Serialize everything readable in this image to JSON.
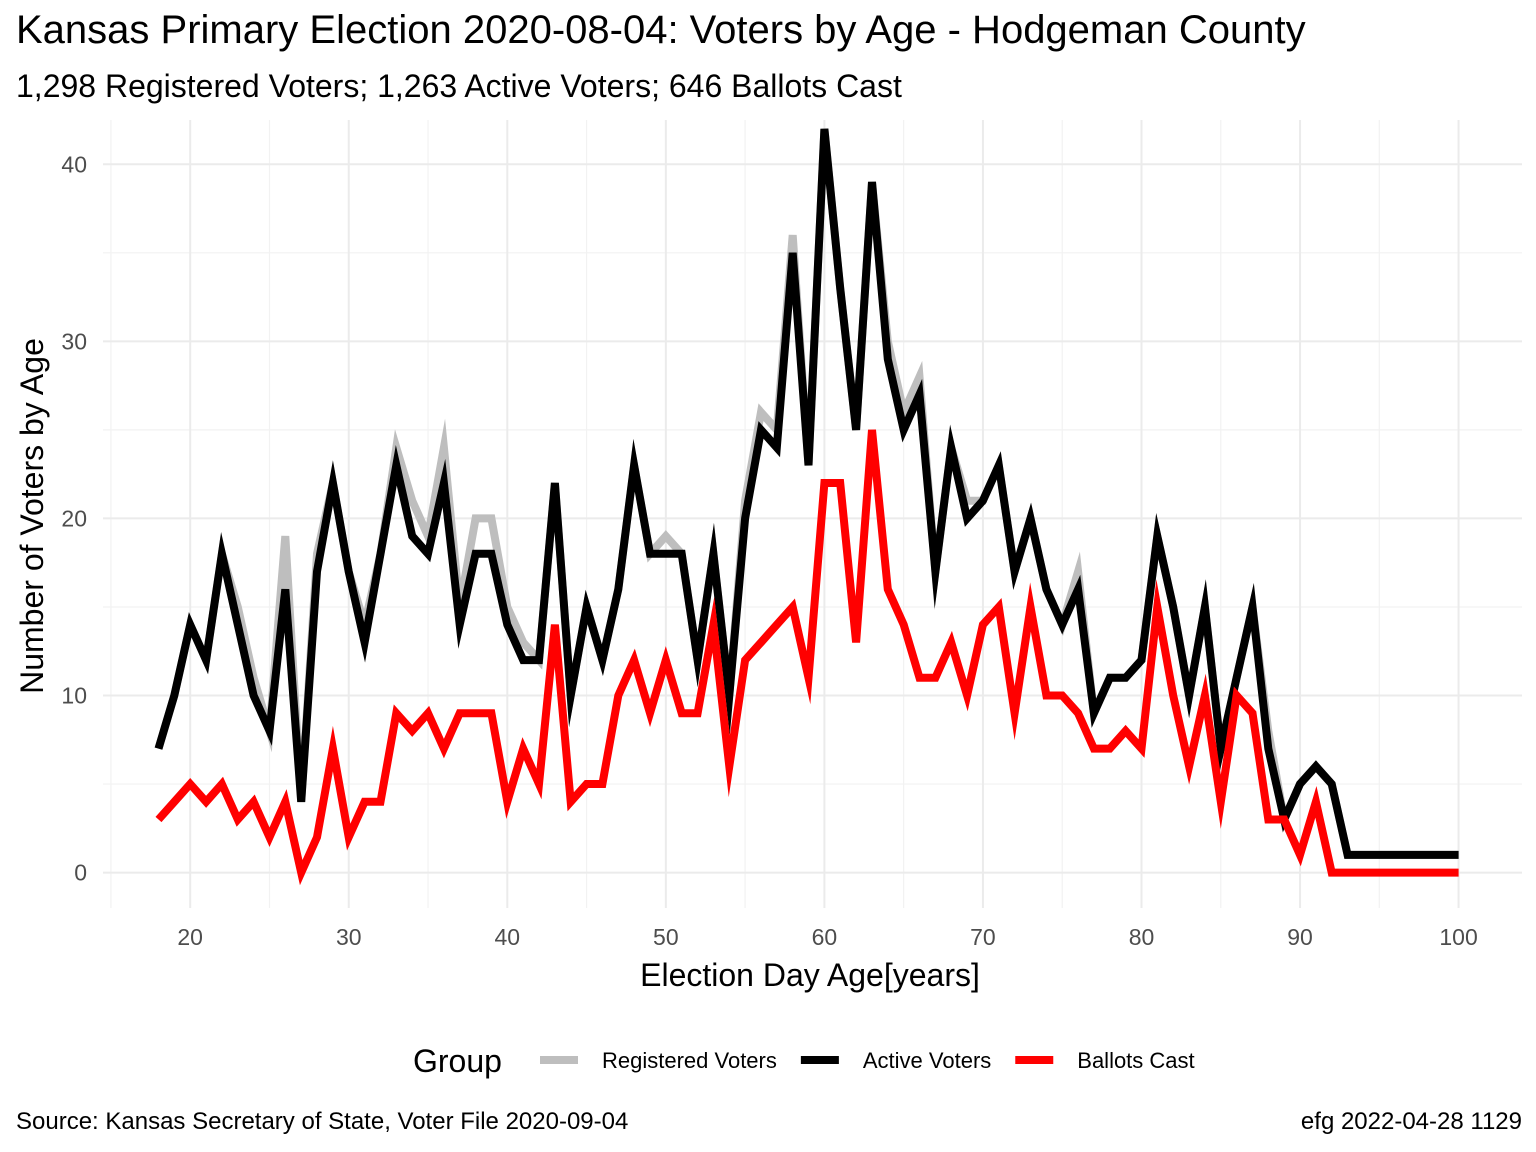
{
  "header": {
    "title": "Kansas Primary Election 2020-08-04:  Voters by Age - Hodgeman County",
    "subtitle": "1,298 Registered Voters; 1,263 Active Voters; 646 Ballots Cast"
  },
  "footer": {
    "source": "Source:  Kansas Secretary of State, Voter File  2020-09-04",
    "stamp": "efg 2022-04-28 1129"
  },
  "chart_data": {
    "type": "line",
    "xlabel": "Election Day Age[years]",
    "ylabel": "Number of Voters by Age",
    "xlim": [
      14.5,
      104
    ],
    "ylim": [
      -2,
      42.5
    ],
    "x_ticks": [
      20,
      30,
      40,
      50,
      60,
      70,
      80,
      90,
      100
    ],
    "y_ticks": [
      0,
      10,
      20,
      30,
      40
    ],
    "grid": true,
    "legend_position": "bottom",
    "legend_title": "Group",
    "x": [
      18,
      19,
      20,
      21,
      22,
      23,
      24,
      25,
      26,
      27,
      28,
      29,
      30,
      31,
      32,
      33,
      34,
      35,
      36,
      37,
      38,
      39,
      40,
      41,
      42,
      43,
      44,
      45,
      46,
      47,
      48,
      49,
      50,
      51,
      52,
      53,
      54,
      55,
      56,
      57,
      58,
      59,
      60,
      61,
      62,
      63,
      64,
      65,
      66,
      67,
      68,
      69,
      70,
      71,
      72,
      73,
      74,
      75,
      76,
      77,
      78,
      79,
      80,
      81,
      82,
      83,
      84,
      85,
      86,
      87,
      88,
      89,
      90,
      91,
      92,
      93,
      94,
      95,
      96,
      97,
      98,
      99,
      100
    ],
    "series": [
      {
        "name": "Registered Voters",
        "color": "#bebebe",
        "values": [
          7,
          10,
          14,
          12,
          18,
          15,
          11,
          8,
          19,
          4,
          18,
          22,
          17,
          14,
          18,
          24,
          21,
          19,
          24,
          15,
          20,
          20,
          15,
          13,
          12,
          22,
          10,
          15,
          12,
          16,
          23,
          18,
          19,
          18,
          12,
          18,
          10,
          21,
          26,
          25,
          36,
          23,
          42,
          33,
          25,
          39,
          30,
          26,
          28,
          17,
          24,
          21,
          21,
          23,
          17,
          20,
          16,
          14,
          17,
          9,
          11,
          11,
          12,
          19,
          15,
          10,
          15,
          7,
          11,
          15,
          8,
          3,
          5,
          6,
          5,
          1,
          1,
          1,
          1,
          1,
          1,
          1,
          1
        ]
      },
      {
        "name": "Active Voters",
        "color": "#000000",
        "values": [
          7,
          10,
          14,
          12,
          18,
          14,
          10,
          8,
          16,
          4,
          17,
          22,
          17,
          13,
          18,
          23,
          19,
          18,
          22,
          14,
          18,
          18,
          14,
          12,
          12,
          22,
          10,
          15,
          12,
          16,
          23,
          18,
          18,
          18,
          12,
          18,
          10,
          20,
          25,
          24,
          35,
          23,
          42,
          33,
          25,
          39,
          29,
          25,
          27,
          17,
          24,
          20,
          21,
          23,
          17,
          20,
          16,
          14,
          16,
          9,
          11,
          11,
          12,
          19,
          15,
          10,
          15,
          7,
          11,
          15,
          7,
          3,
          5,
          6,
          5,
          1,
          1,
          1,
          1,
          1,
          1,
          1,
          1
        ]
      },
      {
        "name": "Ballots Cast",
        "color": "#ff0000",
        "values": [
          3,
          4,
          5,
          4,
          5,
          3,
          4,
          2,
          4,
          0,
          2,
          7,
          2,
          4,
          4,
          9,
          8,
          9,
          7,
          9,
          9,
          9,
          4,
          7,
          5,
          14,
          4,
          5,
          5,
          10,
          12,
          9,
          12,
          9,
          9,
          14,
          6,
          12,
          13,
          14,
          15,
          11,
          22,
          22,
          13,
          25,
          16,
          14,
          11,
          11,
          13,
          10,
          14,
          15,
          9,
          15,
          10,
          10,
          9,
          7,
          7,
          8,
          7,
          15,
          10,
          6,
          10,
          4,
          10,
          9,
          3,
          3,
          1,
          4,
          0,
          0,
          0,
          0,
          0,
          0,
          0,
          0,
          0
        ]
      }
    ]
  }
}
